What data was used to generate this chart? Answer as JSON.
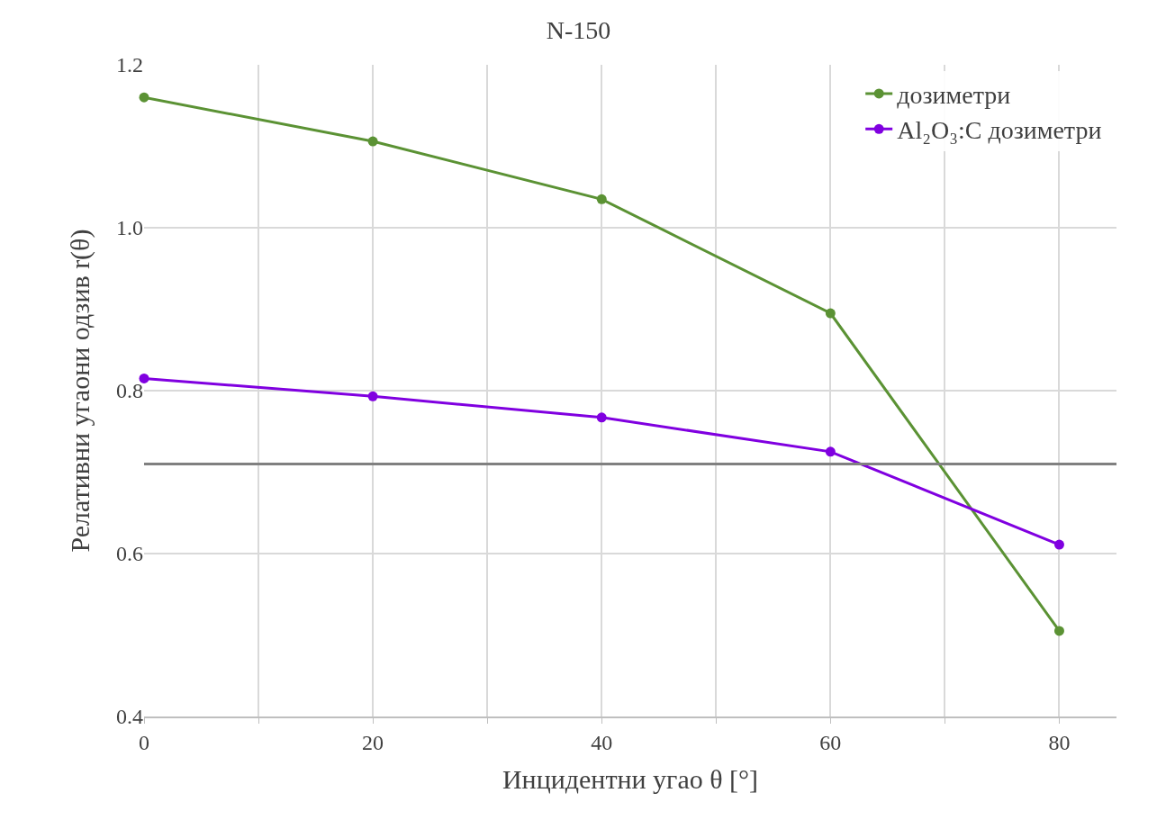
{
  "chart_data": {
    "type": "line",
    "title": "N-150",
    "xlabel": "Инцидентни угао θ [°]",
    "ylabel": "Релативни угаони одзив r(θ)",
    "x": [
      0,
      20,
      40,
      60,
      80
    ],
    "series": [
      {
        "name": "дозиметри",
        "color": "#5b9234",
        "values": [
          1.16,
          1.106,
          1.035,
          0.895,
          0.505
        ]
      },
      {
        "name": "Al₂O₃:C дозиметри",
        "color": "#8000e0",
        "values": [
          0.815,
          0.793,
          0.767,
          0.725,
          0.611
        ]
      }
    ],
    "xlim": [
      0,
      85
    ],
    "xticks": [
      0,
      {
        "value": 10,
        "label": null
      },
      20,
      {
        "value": 30,
        "label": null
      },
      40,
      {
        "value": 50,
        "label": null
      },
      60,
      {
        "value": 70,
        "label": null
      },
      80
    ],
    "ylim": [
      0.4,
      1.2
    ],
    "yticks": [
      0.4,
      0.6,
      0.8,
      {
        "value": 1,
        "label": "1.0"
      },
      1.2
    ],
    "ref_lines": [
      {
        "axis": "y",
        "value": 0.71,
        "color": "#808080"
      }
    ],
    "grid": true,
    "legend": "top right",
    "marker": "circle",
    "line_style": "solid"
  }
}
